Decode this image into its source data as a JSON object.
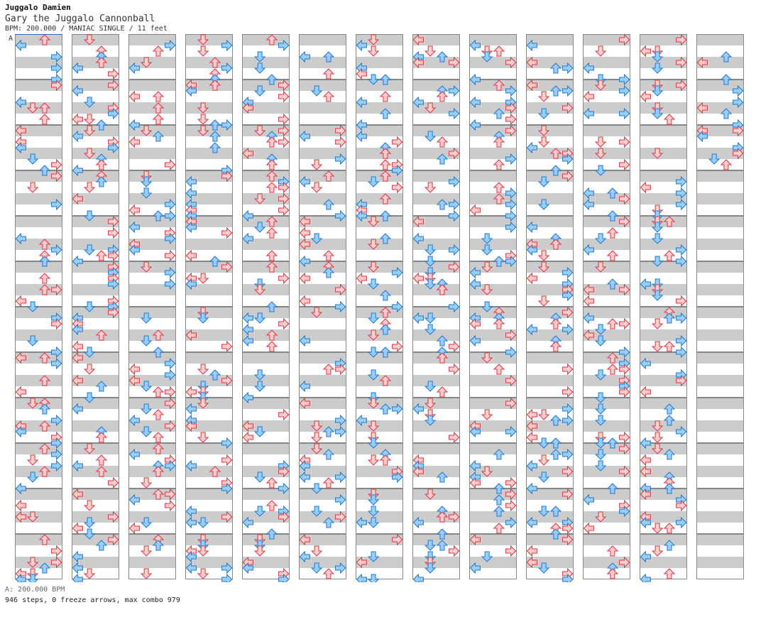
{
  "header": {
    "artist": "Juggalo Damien",
    "title": "Gary the Juggalo Cannonball",
    "meta": "BPM: 200.000 / MANIAC SINGLE / 11 feet"
  },
  "bpm_marker": "A",
  "footer": {
    "bpm_line": "A: 200.000 BPM",
    "stats": "946 steps, 0 freeze arrows, max combo 979"
  },
  "chart": {
    "columns": 13,
    "measures_per_column": 12,
    "last_column_measures": 3,
    "lanes": [
      "left",
      "down",
      "up",
      "right"
    ],
    "colors": {
      "quarter_fill": "#ffcccc",
      "quarter_stroke": "#dd3344",
      "eighth_fill": "#99ccff",
      "eighth_stroke": "#2277cc",
      "stripe": "#cccccc",
      "measure_border": "#888888"
    },
    "arrow_icons": {
      "left": "arrow-left-icon",
      "down": "arrow-down-icon",
      "up": "arrow-up-icon",
      "right": "arrow-right-icon"
    }
  }
}
